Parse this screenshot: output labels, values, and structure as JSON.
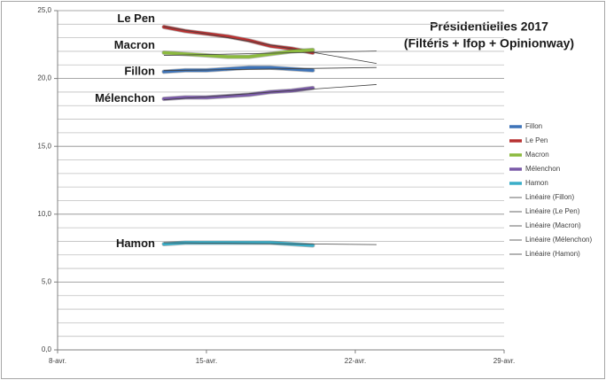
{
  "chart_data": {
    "type": "line",
    "title": "Présidentielles 2017",
    "subtitle": "(Filtéris + Ifop + Opinionway)",
    "x": [
      13,
      14,
      15,
      16,
      17,
      18,
      19,
      20
    ],
    "xlim": [
      8,
      29
    ],
    "xticks": [
      {
        "value": 8,
        "label": "8-avr."
      },
      {
        "value": 15,
        "label": "15-avr."
      },
      {
        "value": 22,
        "label": "22-avr."
      },
      {
        "value": 29,
        "label": "29-avr."
      }
    ],
    "ylim": [
      0,
      25
    ],
    "yticks": [
      {
        "value": 0,
        "label": "0,0"
      },
      {
        "value": 5,
        "label": "5,0"
      },
      {
        "value": 10,
        "label": "10,0"
      },
      {
        "value": 15,
        "label": "15,0"
      },
      {
        "value": 20,
        "label": "20,0"
      },
      {
        "value": 25,
        "label": "25,0"
      }
    ],
    "y_minor_ticks": [
      1,
      2,
      3,
      4,
      6,
      7,
      8,
      9,
      11,
      12,
      13,
      14,
      16,
      17,
      18,
      19,
      21,
      22,
      23,
      24
    ],
    "grid": true,
    "series": [
      {
        "name": "Fillon",
        "color": "#3d73b8",
        "values": [
          20.5,
          20.6,
          20.6,
          20.7,
          20.8,
          20.8,
          20.7,
          20.6
        ]
      },
      {
        "name": "Le Pen",
        "color": "#b83232",
        "values": [
          23.8,
          23.5,
          23.3,
          23.1,
          22.8,
          22.4,
          22.2,
          21.9
        ]
      },
      {
        "name": "Macron",
        "color": "#8cba3f",
        "values": [
          21.9,
          21.8,
          21.7,
          21.6,
          21.6,
          21.8,
          22.0,
          22.1
        ]
      },
      {
        "name": "Mélenchon",
        "color": "#7a5aa8",
        "values": [
          18.5,
          18.6,
          18.6,
          18.7,
          18.8,
          19.0,
          19.1,
          19.3
        ]
      },
      {
        "name": "Hamon",
        "color": "#3aaec8",
        "values": [
          7.8,
          7.9,
          7.9,
          7.9,
          7.9,
          7.9,
          7.8,
          7.7
        ]
      }
    ],
    "trendlines": {
      "color": "#404040",
      "forward": 3,
      "names": [
        "Linéaire (Fillon)",
        "Linéaire (Le Pen)",
        "Linéaire (Macron)",
        "Linéaire (Mélenchon)",
        "Linéaire (Hamon)"
      ]
    },
    "legend": "right"
  }
}
